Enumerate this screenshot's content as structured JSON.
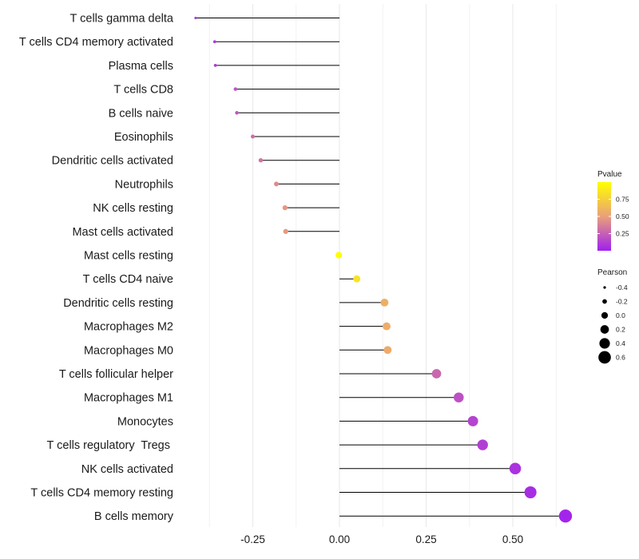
{
  "chart_data": {
    "type": "lollipop",
    "orientation": "horizontal",
    "title": "",
    "xlabel": "",
    "ylabel": "",
    "xlim": [
      -0.43,
      0.67
    ],
    "x_ticks": [
      -0.25,
      0.0,
      0.25,
      0.5
    ],
    "x_tick_labels": [
      "-0.25",
      "0.00",
      "0.25",
      "0.50"
    ],
    "grid": true,
    "points": [
      {
        "category": "T cells gamma delta",
        "value": -0.415,
        "pvalue": 0.05
      },
      {
        "category": "T cells CD4 memory activated",
        "value": -0.36,
        "pvalue": 0.1
      },
      {
        "category": "Plasma cells",
        "value": -0.358,
        "pvalue": 0.1
      },
      {
        "category": "T cells CD8",
        "value": -0.3,
        "pvalue": 0.2
      },
      {
        "category": "B cells naive",
        "value": -0.296,
        "pvalue": 0.22
      },
      {
        "category": "Eosinophils",
        "value": -0.25,
        "pvalue": 0.3
      },
      {
        "category": "Dendritic cells activated",
        "value": -0.227,
        "pvalue": 0.33
      },
      {
        "category": "Neutrophils",
        "value": -0.182,
        "pvalue": 0.42
      },
      {
        "category": "NK cells resting",
        "value": -0.157,
        "pvalue": 0.47
      },
      {
        "category": "Mast cells activated",
        "value": -0.155,
        "pvalue": 0.47
      },
      {
        "category": "Mast cells resting",
        "value": -0.002,
        "pvalue": 0.99
      },
      {
        "category": "T cells CD4 naive",
        "value": 0.05,
        "pvalue": 0.85
      },
      {
        "category": "Dendritic cells resting",
        "value": 0.13,
        "pvalue": 0.58
      },
      {
        "category": "Macrophages M2",
        "value": 0.136,
        "pvalue": 0.57
      },
      {
        "category": "Macrophages M0",
        "value": 0.139,
        "pvalue": 0.56
      },
      {
        "category": "T cells follicular helper",
        "value": 0.28,
        "pvalue": 0.28
      },
      {
        "category": "Macrophages M1",
        "value": 0.344,
        "pvalue": 0.19
      },
      {
        "category": "Monocytes",
        "value": 0.385,
        "pvalue": 0.14
      },
      {
        "category": "T cells regulatory  Tregs ",
        "value": 0.413,
        "pvalue": 0.12
      },
      {
        "category": "NK cells activated",
        "value": 0.507,
        "pvalue": 0.07
      },
      {
        "category": "T cells CD4 memory resting",
        "value": 0.551,
        "pvalue": 0.05
      },
      {
        "category": "B cells memory",
        "value": 0.652,
        "pvalue": 0.02
      }
    ],
    "legend": {
      "placement": "right",
      "color": {
        "title": "Pvalue",
        "ticks": [
          0.25,
          0.5,
          0.75
        ],
        "tick_labels": [
          "0.25",
          "0.50",
          "0.75"
        ],
        "range": [
          0.0,
          1.0
        ],
        "colors": [
          "#a020f0",
          "#eaa07a",
          "#ffff00"
        ]
      },
      "size": {
        "title": "Pearson",
        "values": [
          -0.4,
          -0.2,
          0.0,
          0.2,
          0.4,
          0.6
        ],
        "labels": [
          "-0.4",
          "-0.2",
          "0.0",
          "0.2",
          "0.4",
          "0.6"
        ]
      }
    }
  }
}
